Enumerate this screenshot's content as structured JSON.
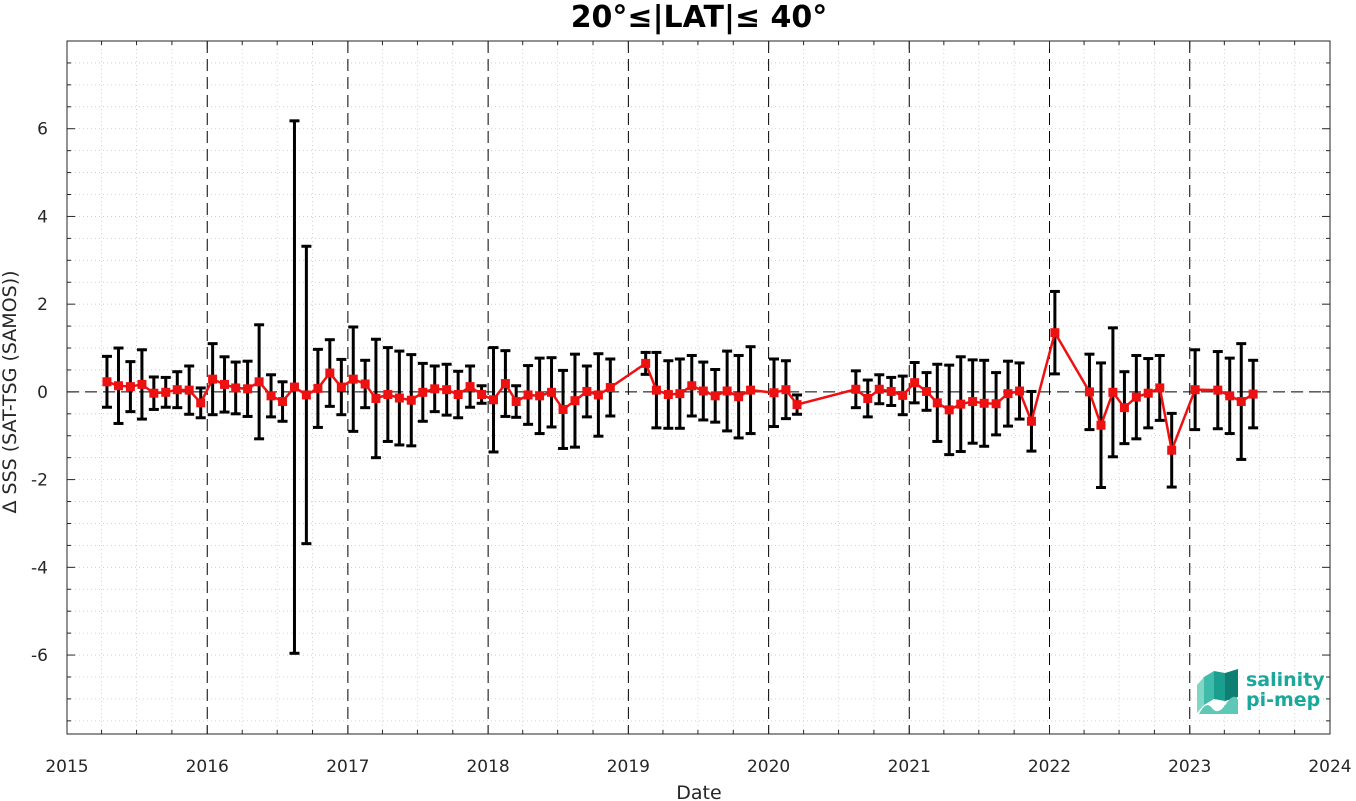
{
  "chart_data": {
    "type": "line",
    "title": "20°≤|LAT|≤ 40°",
    "xlabel": "Date",
    "ylabel": "Δ SSS (SAT-TSG (SAMOS))",
    "xlim": [
      "2015-01-01",
      "2024-01-01"
    ],
    "ylim": [
      -7.8,
      8.0
    ],
    "x_ticks": [
      "2015",
      "2016",
      "2017",
      "2018",
      "2019",
      "2020",
      "2021",
      "2022",
      "2023",
      "2024"
    ],
    "y_ticks": [
      -6,
      -4,
      -2,
      0,
      2,
      4,
      6
    ],
    "y_tick_labels": [
      "-6",
      "-4",
      "-2",
      "0",
      "2",
      "4",
      "6"
    ],
    "grid": true,
    "year_boundary_lines": "dashed",
    "zero_line": "dashed",
    "series": [
      {
        "color": "#ee1111",
        "marker": "square",
        "errorbar_color": "#000000",
        "points": [
          {
            "x": "2015-04-15",
            "y": 0.23,
            "err": 0.58
          },
          {
            "x": "2015-05-15",
            "y": 0.14,
            "err": 0.86
          },
          {
            "x": "2015-06-15",
            "y": 0.12,
            "err": 0.57
          },
          {
            "x": "2015-07-15",
            "y": 0.17,
            "err": 0.79
          },
          {
            "x": "2015-08-15",
            "y": -0.03,
            "err": 0.37
          },
          {
            "x": "2015-09-15",
            "y": -0.01,
            "err": 0.34
          },
          {
            "x": "2015-10-15",
            "y": 0.05,
            "err": 0.41
          },
          {
            "x": "2015-11-15",
            "y": 0.04,
            "err": 0.55
          },
          {
            "x": "2015-12-15",
            "y": -0.25,
            "err": 0.34
          },
          {
            "x": "2016-01-15",
            "y": 0.29,
            "err": 0.81
          },
          {
            "x": "2016-02-15",
            "y": 0.17,
            "err": 0.63
          },
          {
            "x": "2016-03-15",
            "y": 0.09,
            "err": 0.59
          },
          {
            "x": "2016-04-15",
            "y": 0.07,
            "err": 0.63
          },
          {
            "x": "2016-05-15",
            "y": 0.23,
            "err": 1.3
          },
          {
            "x": "2016-06-15",
            "y": -0.09,
            "err": 0.48
          },
          {
            "x": "2016-07-15",
            "y": -0.22,
            "err": 0.45
          },
          {
            "x": "2016-08-15",
            "y": 0.11,
            "err": 6.07
          },
          {
            "x": "2016-09-15",
            "y": -0.07,
            "err": 3.39
          },
          {
            "x": "2016-10-15",
            "y": 0.08,
            "err": 0.89
          },
          {
            "x": "2016-11-15",
            "y": 0.43,
            "err": 0.76
          },
          {
            "x": "2016-12-15",
            "y": 0.11,
            "err": 0.63
          },
          {
            "x": "2017-01-15",
            "y": 0.29,
            "err": 1.19
          },
          {
            "x": "2017-02-15",
            "y": 0.18,
            "err": 0.54
          },
          {
            "x": "2017-03-15",
            "y": -0.15,
            "err": 1.35
          },
          {
            "x": "2017-04-15",
            "y": -0.06,
            "err": 1.07
          },
          {
            "x": "2017-05-15",
            "y": -0.14,
            "err": 1.07
          },
          {
            "x": "2017-06-15",
            "y": -0.19,
            "err": 1.04
          },
          {
            "x": "2017-07-15",
            "y": -0.01,
            "err": 0.66
          },
          {
            "x": "2017-08-15",
            "y": 0.07,
            "err": 0.52
          },
          {
            "x": "2017-09-15",
            "y": 0.05,
            "err": 0.58
          },
          {
            "x": "2017-10-15",
            "y": -0.06,
            "err": 0.53
          },
          {
            "x": "2017-11-15",
            "y": 0.12,
            "err": 0.47
          },
          {
            "x": "2017-12-15",
            "y": -0.06,
            "err": 0.2
          },
          {
            "x": "2018-01-15",
            "y": -0.18,
            "err": 1.19
          },
          {
            "x": "2018-02-15",
            "y": 0.19,
            "err": 0.75
          },
          {
            "x": "2018-03-15",
            "y": -0.22,
            "err": 0.36
          },
          {
            "x": "2018-04-15",
            "y": -0.07,
            "err": 0.67
          },
          {
            "x": "2018-05-15",
            "y": -0.09,
            "err": 0.86
          },
          {
            "x": "2018-06-15",
            "y": -0.01,
            "err": 0.79
          },
          {
            "x": "2018-07-15",
            "y": -0.4,
            "err": 0.89
          },
          {
            "x": "2018-08-15",
            "y": -0.2,
            "err": 1.06
          },
          {
            "x": "2018-09-15",
            "y": 0.01,
            "err": 0.58
          },
          {
            "x": "2018-10-15",
            "y": -0.07,
            "err": 0.94
          },
          {
            "x": "2018-11-15",
            "y": 0.1,
            "err": 0.65
          },
          {
            "x": "2019-02-15",
            "y": 0.65,
            "err": 0.25
          },
          {
            "x": "2019-03-15",
            "y": 0.04,
            "err": 0.86
          },
          {
            "x": "2019-04-15",
            "y": -0.06,
            "err": 0.77
          },
          {
            "x": "2019-05-15",
            "y": -0.04,
            "err": 0.79
          },
          {
            "x": "2019-06-15",
            "y": 0.14,
            "err": 0.69
          },
          {
            "x": "2019-07-15",
            "y": 0.02,
            "err": 0.66
          },
          {
            "x": "2019-08-15",
            "y": -0.09,
            "err": 0.6
          },
          {
            "x": "2019-09-15",
            "y": 0.02,
            "err": 0.91
          },
          {
            "x": "2019-10-15",
            "y": -0.11,
            "err": 0.94
          },
          {
            "x": "2019-11-15",
            "y": 0.04,
            "err": 0.99
          },
          {
            "x": "2020-01-15",
            "y": -0.02,
            "err": 0.77
          },
          {
            "x": "2020-02-15",
            "y": 0.05,
            "err": 0.66
          },
          {
            "x": "2020-03-15",
            "y": -0.29,
            "err": 0.22
          },
          {
            "x": "2020-08-15",
            "y": 0.06,
            "err": 0.42
          },
          {
            "x": "2020-09-15",
            "y": -0.15,
            "err": 0.42
          },
          {
            "x": "2020-10-15",
            "y": 0.06,
            "err": 0.33
          },
          {
            "x": "2020-11-15",
            "y": 0.01,
            "err": 0.32
          },
          {
            "x": "2020-12-15",
            "y": -0.08,
            "err": 0.44
          },
          {
            "x": "2021-01-15",
            "y": 0.21,
            "err": 0.46
          },
          {
            "x": "2021-02-15",
            "y": 0.01,
            "err": 0.43
          },
          {
            "x": "2021-03-15",
            "y": -0.25,
            "err": 0.88
          },
          {
            "x": "2021-04-15",
            "y": -0.41,
            "err": 1.02
          },
          {
            "x": "2021-05-15",
            "y": -0.28,
            "err": 1.08
          },
          {
            "x": "2021-06-15",
            "y": -0.22,
            "err": 0.95
          },
          {
            "x": "2021-07-15",
            "y": -0.26,
            "err": 0.98
          },
          {
            "x": "2021-08-15",
            "y": -0.27,
            "err": 0.71
          },
          {
            "x": "2021-09-15",
            "y": -0.04,
            "err": 0.74
          },
          {
            "x": "2021-10-15",
            "y": 0.02,
            "err": 0.64
          },
          {
            "x": "2021-11-15",
            "y": -0.67,
            "err": 0.68
          },
          {
            "x": "2022-01-15",
            "y": 1.35,
            "err": 0.94
          },
          {
            "x": "2022-04-15",
            "y": 0.0,
            "err": 0.86
          },
          {
            "x": "2022-05-15",
            "y": -0.76,
            "err": 1.42
          },
          {
            "x": "2022-06-15",
            "y": -0.01,
            "err": 1.47
          },
          {
            "x": "2022-07-15",
            "y": -0.36,
            "err": 0.82
          },
          {
            "x": "2022-08-15",
            "y": -0.12,
            "err": 0.95
          },
          {
            "x": "2022-09-15",
            "y": -0.03,
            "err": 0.79
          },
          {
            "x": "2022-10-15",
            "y": 0.09,
            "err": 0.74
          },
          {
            "x": "2022-11-15",
            "y": -1.33,
            "err": 0.84
          },
          {
            "x": "2023-01-15",
            "y": 0.05,
            "err": 0.91
          },
          {
            "x": "2023-03-15",
            "y": 0.04,
            "err": 0.88
          },
          {
            "x": "2023-04-15",
            "y": -0.09,
            "err": 0.86
          },
          {
            "x": "2023-05-15",
            "y": -0.22,
            "err": 1.32
          },
          {
            "x": "2023-06-15",
            "y": -0.05,
            "err": 0.77
          }
        ]
      }
    ]
  },
  "logo": {
    "line1": "salinity",
    "line2": "pi-mep",
    "color": "#1aa89c",
    "icon": "salinity-pimep-logo-icon"
  }
}
